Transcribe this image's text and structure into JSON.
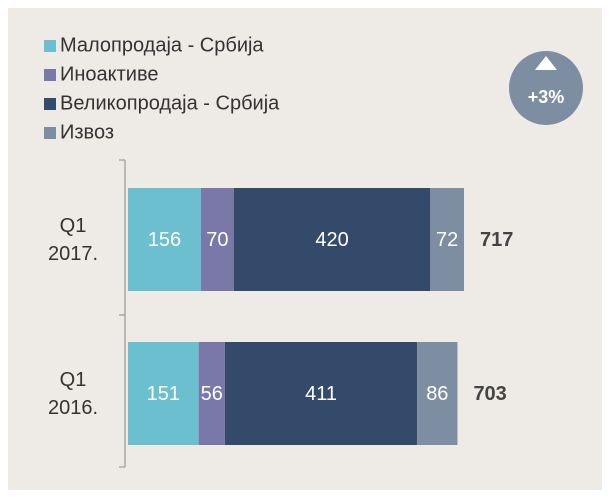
{
  "chart_data": {
    "type": "stacked-bar-horizontal",
    "categories": [
      "Q1\n2017.",
      "Q1\n2016."
    ],
    "series": [
      {
        "name": "Малопродаја - Србија",
        "color": "#6cbfcf",
        "values": [
          156,
          151
        ]
      },
      {
        "name": "Иноактиве",
        "color": "#7a77a9",
        "values": [
          70,
          56
        ]
      },
      {
        "name": "Великопродаја - Србија",
        "color": "#344a6b",
        "values": [
          420,
          411
        ]
      },
      {
        "name": "Извоз",
        "color": "#7d8ea3",
        "values": [
          72,
          86
        ]
      }
    ],
    "totals": [
      717,
      703
    ],
    "annotation": "+3%",
    "annotation_color": "#7d8ea3",
    "legend": "top-left"
  }
}
